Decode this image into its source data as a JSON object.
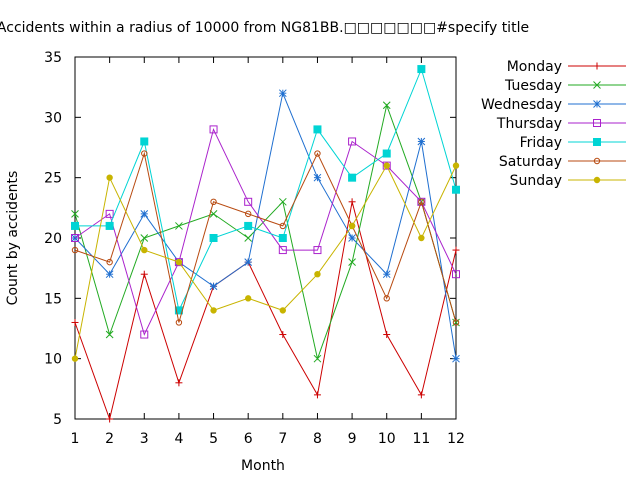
{
  "chart_data": {
    "type": "line",
    "title": "Accidents within a radius of 10000 from NG81BB.□□□□□□□#specify title",
    "xlabel": "Month",
    "ylabel": "Count by accidents",
    "x": [
      1,
      2,
      3,
      4,
      5,
      6,
      7,
      8,
      9,
      10,
      11,
      12
    ],
    "xlim": [
      1,
      12
    ],
    "ylim": [
      5,
      35
    ],
    "yticks": [
      5,
      10,
      15,
      20,
      25,
      30,
      35
    ],
    "grid": false,
    "legend_position": "top-right outside",
    "series": [
      {
        "name": "Monday",
        "color": "#cc0000",
        "marker": "plus",
        "values": [
          13,
          5,
          17,
          8,
          16,
          18,
          12,
          7,
          23,
          12,
          7,
          19
        ]
      },
      {
        "name": "Tuesday",
        "color": "#22aa22",
        "marker": "cross",
        "values": [
          22,
          12,
          20,
          21,
          22,
          20,
          23,
          10,
          18,
          31,
          23,
          13
        ]
      },
      {
        "name": "Wednesday",
        "color": "#1f6fd0",
        "marker": "star",
        "values": [
          20,
          17,
          22,
          18,
          16,
          18,
          32,
          25,
          20,
          17,
          28,
          10
        ]
      },
      {
        "name": "Thursday",
        "color": "#aa22cc",
        "marker": "open-square",
        "values": [
          20,
          22,
          12,
          18,
          29,
          23,
          19,
          19,
          28,
          26,
          23,
          17
        ]
      },
      {
        "name": "Friday",
        "color": "#00d4d4",
        "marker": "filled-square",
        "values": [
          21,
          21,
          28,
          14,
          20,
          21,
          20,
          29,
          25,
          27,
          34,
          24
        ]
      },
      {
        "name": "Saturday",
        "color": "#b84a10",
        "marker": "open-circle",
        "values": [
          19,
          18,
          27,
          13,
          23,
          22,
          21,
          27,
          21,
          15,
          23,
          13
        ]
      },
      {
        "name": "Sunday",
        "color": "#c8b400",
        "marker": "filled-circle",
        "values": [
          10,
          25,
          19,
          18,
          14,
          15,
          14,
          17,
          21,
          26,
          20,
          26
        ]
      }
    ]
  }
}
